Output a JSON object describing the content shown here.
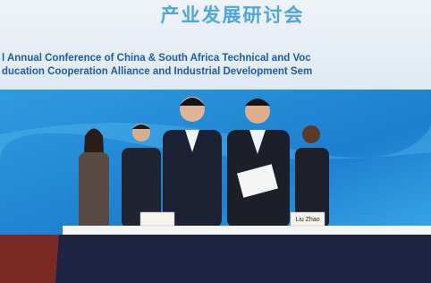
{
  "banner": {
    "title": "产业发展研讨会",
    "subtitle_lines": [
      "l Annual Conference of China & South Africa Technical and Voc",
      "ducation Cooperation Alliance and Industrial Development Sem"
    ]
  },
  "name_cards": [
    "Liu Zhao"
  ]
}
